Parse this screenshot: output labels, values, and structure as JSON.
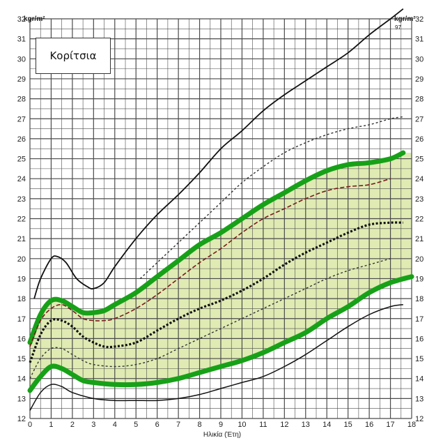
{
  "chart_data": {
    "type": "line",
    "title": "Κορίτσια",
    "xlabel": "Ηλικία (Έτη)",
    "ylabel_left": "kgr/m²",
    "ylabel_right": "kgr/m²",
    "xlim": [
      0,
      18
    ],
    "ylim": [
      12,
      32
    ],
    "x_ticks": [
      0,
      1,
      2,
      3,
      4,
      5,
      6,
      7,
      8,
      9,
      10,
      11,
      12,
      13,
      14,
      15,
      16,
      17,
      18
    ],
    "y_ticks": [
      12,
      13,
      14,
      15,
      16,
      17,
      18,
      19,
      20,
      21,
      22,
      23,
      24,
      25,
      26,
      27,
      28,
      29,
      30,
      31,
      32
    ],
    "top_series_label": "97",
    "grid": true,
    "normal_range_fill": "#d9e8a6",
    "series": [
      {
        "style": "solid-black",
        "points": [
          [
            0.2,
            18.0
          ],
          [
            0.5,
            19.0
          ],
          [
            1.0,
            20.0
          ],
          [
            1.3,
            20.1
          ],
          [
            1.7,
            19.8
          ],
          [
            2.2,
            19.0
          ],
          [
            2.7,
            18.6
          ],
          [
            3.0,
            18.5
          ],
          [
            3.5,
            18.8
          ],
          [
            4.0,
            19.6
          ],
          [
            5.0,
            21.0
          ],
          [
            6.0,
            22.2
          ],
          [
            7.0,
            23.2
          ],
          [
            8.0,
            24.3
          ],
          [
            9.0,
            25.5
          ],
          [
            10.0,
            26.4
          ],
          [
            11.0,
            27.4
          ],
          [
            12.0,
            28.2
          ],
          [
            13.0,
            28.9
          ],
          [
            14.0,
            29.6
          ],
          [
            15.0,
            30.3
          ],
          [
            16.0,
            31.2
          ],
          [
            17.0,
            32.0
          ],
          [
            17.6,
            32.5
          ]
        ]
      },
      {
        "style": "dotted-gray",
        "points": [
          [
            5.2,
            19.0
          ],
          [
            6.0,
            19.8
          ],
          [
            7.0,
            20.8
          ],
          [
            8.0,
            21.8
          ],
          [
            9.0,
            22.8
          ],
          [
            10.0,
            23.8
          ],
          [
            11.0,
            24.6
          ],
          [
            12.0,
            25.3
          ],
          [
            13.0,
            25.8
          ],
          [
            14.0,
            26.2
          ],
          [
            15.0,
            26.5
          ],
          [
            16.0,
            26.7
          ],
          [
            17.0,
            27.0
          ],
          [
            17.6,
            27.1
          ]
        ]
      },
      {
        "style": "thick-green",
        "points": [
          [
            0.0,
            15.8
          ],
          [
            0.5,
            17.2
          ],
          [
            1.0,
            17.9
          ],
          [
            1.5,
            17.9
          ],
          [
            2.0,
            17.6
          ],
          [
            2.5,
            17.3
          ],
          [
            3.0,
            17.3
          ],
          [
            3.5,
            17.4
          ],
          [
            4.0,
            17.7
          ],
          [
            5.0,
            18.3
          ],
          [
            6.0,
            19.1
          ],
          [
            7.0,
            19.9
          ],
          [
            8.0,
            20.7
          ],
          [
            9.0,
            21.3
          ],
          [
            10.0,
            22.0
          ],
          [
            11.0,
            22.7
          ],
          [
            12.0,
            23.3
          ],
          [
            13.0,
            23.9
          ],
          [
            14.0,
            24.4
          ],
          [
            15.0,
            24.7
          ],
          [
            16.0,
            24.8
          ],
          [
            17.0,
            25.0
          ],
          [
            17.6,
            25.3
          ]
        ]
      },
      {
        "style": "dashed-red",
        "points": [
          [
            0.0,
            15.6
          ],
          [
            0.5,
            16.9
          ],
          [
            1.0,
            17.5
          ],
          [
            1.5,
            17.7
          ],
          [
            2.0,
            17.4
          ],
          [
            2.5,
            17.0
          ],
          [
            3.0,
            16.9
          ],
          [
            3.5,
            16.9
          ],
          [
            4.0,
            17.0
          ],
          [
            5.0,
            17.5
          ],
          [
            6.0,
            18.2
          ],
          [
            7.0,
            19.0
          ],
          [
            8.0,
            19.8
          ],
          [
            9.0,
            20.5
          ],
          [
            10.0,
            21.3
          ],
          [
            11.0,
            22.0
          ],
          [
            12.0,
            22.5
          ],
          [
            13.0,
            23.0
          ],
          [
            14.0,
            23.4
          ],
          [
            15.0,
            23.6
          ],
          [
            16.0,
            23.7
          ],
          [
            17.0,
            24.0
          ]
        ]
      },
      {
        "style": "dotted-black",
        "points": [
          [
            0.0,
            14.8
          ],
          [
            0.5,
            16.2
          ],
          [
            1.0,
            16.9
          ],
          [
            1.5,
            16.9
          ],
          [
            2.0,
            16.6
          ],
          [
            2.5,
            16.1
          ],
          [
            3.0,
            15.8
          ],
          [
            3.5,
            15.6
          ],
          [
            4.0,
            15.6
          ],
          [
            5.0,
            15.8
          ],
          [
            6.0,
            16.4
          ],
          [
            7.0,
            17.0
          ],
          [
            8.0,
            17.5
          ],
          [
            9.0,
            17.9
          ],
          [
            10.0,
            18.4
          ],
          [
            11.0,
            19.0
          ],
          [
            12.0,
            19.7
          ],
          [
            13.0,
            20.3
          ],
          [
            14.0,
            20.8
          ],
          [
            15.0,
            21.3
          ],
          [
            16.0,
            21.7
          ],
          [
            17.0,
            21.8
          ],
          [
            17.6,
            21.8
          ]
        ]
      },
      {
        "style": "dotted-gray",
        "points": [
          [
            0.0,
            14.0
          ],
          [
            0.5,
            15.0
          ],
          [
            1.0,
            15.5
          ],
          [
            1.5,
            15.5
          ],
          [
            2.0,
            15.2
          ],
          [
            2.5,
            14.9
          ],
          [
            3.0,
            14.7
          ],
          [
            4.0,
            14.6
          ],
          [
            5.0,
            14.7
          ],
          [
            6.0,
            15.0
          ],
          [
            7.0,
            15.5
          ],
          [
            8.0,
            16.0
          ],
          [
            9.0,
            16.5
          ],
          [
            10.0,
            17.0
          ],
          [
            11.0,
            17.5
          ],
          [
            12.0,
            18.0
          ],
          [
            13.0,
            18.5
          ],
          [
            14.0,
            19.0
          ],
          [
            15.0,
            19.4
          ],
          [
            16.0,
            19.7
          ],
          [
            17.0,
            20.0
          ]
        ]
      },
      {
        "style": "thick-green",
        "points": [
          [
            0.0,
            13.4
          ],
          [
            0.5,
            14.1
          ],
          [
            1.0,
            14.6
          ],
          [
            1.5,
            14.5
          ],
          [
            2.0,
            14.2
          ],
          [
            2.5,
            13.9
          ],
          [
            3.0,
            13.8
          ],
          [
            4.0,
            13.7
          ],
          [
            5.0,
            13.7
          ],
          [
            6.0,
            13.8
          ],
          [
            7.0,
            14.0
          ],
          [
            8.0,
            14.3
          ],
          [
            9.0,
            14.6
          ],
          [
            10.0,
            14.9
          ],
          [
            11.0,
            15.3
          ],
          [
            12.0,
            15.8
          ],
          [
            13.0,
            16.3
          ],
          [
            14.0,
            17.0
          ],
          [
            15.0,
            17.6
          ],
          [
            16.0,
            18.3
          ],
          [
            17.0,
            18.8
          ],
          [
            18.0,
            19.1
          ]
        ]
      },
      {
        "style": "solid-thin",
        "points": [
          [
            0.0,
            12.4
          ],
          [
            0.5,
            13.3
          ],
          [
            1.0,
            13.7
          ],
          [
            1.5,
            13.6
          ],
          [
            2.0,
            13.3
          ],
          [
            3.0,
            13.0
          ],
          [
            4.0,
            12.9
          ],
          [
            5.0,
            12.9
          ],
          [
            6.0,
            12.9
          ],
          [
            7.0,
            13.0
          ],
          [
            8.0,
            13.2
          ],
          [
            9.0,
            13.5
          ],
          [
            10.0,
            13.8
          ],
          [
            11.0,
            14.1
          ],
          [
            12.0,
            14.6
          ],
          [
            13.0,
            15.2
          ],
          [
            14.0,
            15.9
          ],
          [
            15.0,
            16.6
          ],
          [
            16.0,
            17.2
          ],
          [
            17.0,
            17.6
          ],
          [
            17.6,
            17.7
          ]
        ]
      }
    ]
  }
}
